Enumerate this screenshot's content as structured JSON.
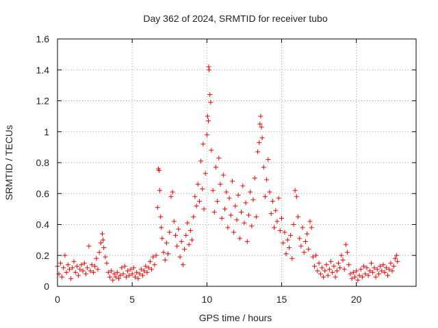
{
  "chart_data": {
    "type": "scatter",
    "title": "Day 362 of 2024, SRMTID for receiver tubo",
    "xlabel": "GPS time / hours",
    "ylabel": "SRMTID / TECUs",
    "xlim": [
      0,
      24
    ],
    "ylim": [
      0,
      1.6
    ],
    "xticks": [
      0,
      5,
      10,
      15,
      20
    ],
    "yticks": [
      0,
      0.2,
      0.4,
      0.6,
      0.8,
      1,
      1.2,
      1.4,
      1.6
    ],
    "ytick_labels": [
      "0",
      "0.2",
      "0.4",
      "0.6",
      "0.8",
      "1",
      "1.2",
      "1.4",
      "1.6"
    ],
    "grid": true,
    "marker": "+",
    "color": "#ee0000",
    "series": [
      {
        "name": "SRMTID",
        "points": [
          [
            0.0,
            0.13
          ],
          [
            0.1,
            0.08
          ],
          [
            0.2,
            0.15
          ],
          [
            0.3,
            0.06
          ],
          [
            0.4,
            0.12
          ],
          [
            0.5,
            0.2
          ],
          [
            0.6,
            0.09
          ],
          [
            0.7,
            0.14
          ],
          [
            0.8,
            0.11
          ],
          [
            0.9,
            0.05
          ],
          [
            1.0,
            0.12
          ],
          [
            1.1,
            0.16
          ],
          [
            1.2,
            0.09
          ],
          [
            1.3,
            0.13
          ],
          [
            1.4,
            0.07
          ],
          [
            1.5,
            0.11
          ],
          [
            1.6,
            0.14
          ],
          [
            1.7,
            0.1
          ],
          [
            1.8,
            0.15
          ],
          [
            1.9,
            0.08
          ],
          [
            2.0,
            0.12
          ],
          [
            2.1,
            0.26
          ],
          [
            2.2,
            0.1
          ],
          [
            2.3,
            0.14
          ],
          [
            2.4,
            0.09
          ],
          [
            2.5,
            0.13
          ],
          [
            2.6,
            0.18
          ],
          [
            2.7,
            0.11
          ],
          [
            2.8,
            0.22
          ],
          [
            2.9,
            0.28
          ],
          [
            3.0,
            0.34
          ],
          [
            3.05,
            0.3
          ],
          [
            3.1,
            0.25
          ],
          [
            3.2,
            0.19
          ],
          [
            3.3,
            0.15
          ],
          [
            3.4,
            0.09
          ],
          [
            3.5,
            0.06
          ],
          [
            3.6,
            0.1
          ],
          [
            3.7,
            0.04
          ],
          [
            3.8,
            0.08
          ],
          [
            3.9,
            0.06
          ],
          [
            4.0,
            0.09
          ],
          [
            4.1,
            0.05
          ],
          [
            4.2,
            0.07
          ],
          [
            4.3,
            0.12
          ],
          [
            4.4,
            0.08
          ],
          [
            4.5,
            0.13
          ],
          [
            4.6,
            0.06
          ],
          [
            4.7,
            0.1
          ],
          [
            4.8,
            0.07
          ],
          [
            4.9,
            0.11
          ],
          [
            5.0,
            0.08
          ],
          [
            5.1,
            0.12
          ],
          [
            5.2,
            0.06
          ],
          [
            5.3,
            0.09
          ],
          [
            5.4,
            0.05
          ],
          [
            5.5,
            0.08
          ],
          [
            5.6,
            0.11
          ],
          [
            5.7,
            0.07
          ],
          [
            5.8,
            0.1
          ],
          [
            5.9,
            0.13
          ],
          [
            6.0,
            0.09
          ],
          [
            6.1,
            0.12
          ],
          [
            6.2,
            0.16
          ],
          [
            6.3,
            0.11
          ],
          [
            6.4,
            0.19
          ],
          [
            6.5,
            0.14
          ],
          [
            6.6,
            0.2
          ],
          [
            6.7,
            0.51
          ],
          [
            6.75,
            0.76
          ],
          [
            6.8,
            0.75
          ],
          [
            6.85,
            0.62
          ],
          [
            6.9,
            0.45
          ],
          [
            6.95,
            0.38
          ],
          [
            7.0,
            0.31
          ],
          [
            7.1,
            0.22
          ],
          [
            7.2,
            0.17
          ],
          [
            7.3,
            0.28
          ],
          [
            7.4,
            0.21
          ],
          [
            7.5,
            0.35
          ],
          [
            7.6,
            0.58
          ],
          [
            7.7,
            0.61
          ],
          [
            7.8,
            0.42
          ],
          [
            7.9,
            0.33
          ],
          [
            8.0,
            0.26
          ],
          [
            8.1,
            0.37
          ],
          [
            8.2,
            0.19
          ],
          [
            8.3,
            0.29
          ],
          [
            8.4,
            0.14
          ],
          [
            8.5,
            0.24
          ],
          [
            8.6,
            0.33
          ],
          [
            8.7,
            0.41
          ],
          [
            8.8,
            0.27
          ],
          [
            8.9,
            0.36
          ],
          [
            9.0,
            0.3
          ],
          [
            9.1,
            0.45
          ],
          [
            9.2,
            0.58
          ],
          [
            9.3,
            0.52
          ],
          [
            9.4,
            0.66
          ],
          [
            9.5,
            0.55
          ],
          [
            9.6,
            0.81
          ],
          [
            9.7,
            0.63
          ],
          [
            9.75,
            0.92
          ],
          [
            9.8,
            0.5
          ],
          [
            9.9,
            0.73
          ],
          [
            10.0,
            0.98
          ],
          [
            10.05,
            1.1
          ],
          [
            10.1,
            1.07
          ],
          [
            10.12,
            1.42
          ],
          [
            10.15,
            1.4
          ],
          [
            10.2,
            1.24
          ],
          [
            10.25,
            1.19
          ],
          [
            10.3,
            0.88
          ],
          [
            10.4,
            0.62
          ],
          [
            10.5,
            0.48
          ],
          [
            10.6,
            0.77
          ],
          [
            10.7,
            0.55
          ],
          [
            10.8,
            0.83
          ],
          [
            10.9,
            0.66
          ],
          [
            11.0,
            0.44
          ],
          [
            11.1,
            0.72
          ],
          [
            11.2,
            0.5
          ],
          [
            11.3,
            0.61
          ],
          [
            11.4,
            0.38
          ],
          [
            11.5,
            0.57
          ],
          [
            11.6,
            0.46
          ],
          [
            11.7,
            0.68
          ],
          [
            11.8,
            0.35
          ],
          [
            11.9,
            0.52
          ],
          [
            12.0,
            0.43
          ],
          [
            12.1,
            0.59
          ],
          [
            12.2,
            0.31
          ],
          [
            12.3,
            0.48
          ],
          [
            12.4,
            0.65
          ],
          [
            12.5,
            0.41
          ],
          [
            12.6,
            0.54
          ],
          [
            12.7,
            0.29
          ],
          [
            12.8,
            0.46
          ],
          [
            12.9,
            0.61
          ],
          [
            13.0,
            0.39
          ],
          [
            13.1,
            0.56
          ],
          [
            13.2,
            0.7
          ],
          [
            13.3,
            0.45
          ],
          [
            13.4,
            0.87
          ],
          [
            13.5,
            0.93
          ],
          [
            13.55,
            1.05
          ],
          [
            13.6,
            1.1
          ],
          [
            13.65,
            1.03
          ],
          [
            13.7,
            0.96
          ],
          [
            13.8,
            0.77
          ],
          [
            13.9,
            0.58
          ],
          [
            14.0,
            0.69
          ],
          [
            14.1,
            0.82
          ],
          [
            14.2,
            0.61
          ],
          [
            14.3,
            0.47
          ],
          [
            14.4,
            0.55
          ],
          [
            14.5,
            0.38
          ],
          [
            14.6,
            0.49
          ],
          [
            14.7,
            0.42
          ],
          [
            14.8,
            0.57
          ],
          [
            14.9,
            0.36
          ],
          [
            15.0,
            0.44
          ],
          [
            15.1,
            0.28
          ],
          [
            15.2,
            0.35
          ],
          [
            15.3,
            0.21
          ],
          [
            15.4,
            0.3
          ],
          [
            15.5,
            0.25
          ],
          [
            15.6,
            0.33
          ],
          [
            15.7,
            0.18
          ],
          [
            15.8,
            0.4
          ],
          [
            15.9,
            0.62
          ],
          [
            16.0,
            0.58
          ],
          [
            16.1,
            0.45
          ],
          [
            16.2,
            0.31
          ],
          [
            16.3,
            0.26
          ],
          [
            16.4,
            0.38
          ],
          [
            16.5,
            0.22
          ],
          [
            16.6,
            0.29
          ],
          [
            16.7,
            0.34
          ],
          [
            16.8,
            0.24
          ],
          [
            16.9,
            0.42
          ],
          [
            17.0,
            0.38
          ],
          [
            17.1,
            0.19
          ],
          [
            17.2,
            0.13
          ],
          [
            17.3,
            0.2
          ],
          [
            17.4,
            0.1
          ],
          [
            17.5,
            0.15
          ],
          [
            17.6,
            0.08
          ],
          [
            17.7,
            0.12
          ],
          [
            17.8,
            0.06
          ],
          [
            17.9,
            0.1
          ],
          [
            18.0,
            0.14
          ],
          [
            18.1,
            0.07
          ],
          [
            18.2,
            0.11
          ],
          [
            18.3,
            0.16
          ],
          [
            18.4,
            0.09
          ],
          [
            18.5,
            0.13
          ],
          [
            18.6,
            0.06
          ],
          [
            18.7,
            0.1
          ],
          [
            18.8,
            0.15
          ],
          [
            18.9,
            0.12
          ],
          [
            19.0,
            0.2
          ],
          [
            19.1,
            0.17
          ],
          [
            19.2,
            0.11
          ],
          [
            19.3,
            0.27
          ],
          [
            19.4,
            0.22
          ],
          [
            19.5,
            0.14
          ],
          [
            19.6,
            0.08
          ],
          [
            19.7,
            0.05
          ],
          [
            19.8,
            0.09
          ],
          [
            19.9,
            0.06
          ],
          [
            20.0,
            0.1
          ],
          [
            20.1,
            0.04
          ],
          [
            20.2,
            0.07
          ],
          [
            20.3,
            0.11
          ],
          [
            20.4,
            0.06
          ],
          [
            20.5,
            0.13
          ],
          [
            20.6,
            0.08
          ],
          [
            20.7,
            0.12
          ],
          [
            20.8,
            0.07
          ],
          [
            20.9,
            0.1
          ],
          [
            21.0,
            0.15
          ],
          [
            21.1,
            0.09
          ],
          [
            21.2,
            0.12
          ],
          [
            21.3,
            0.06
          ],
          [
            21.4,
            0.11
          ],
          [
            21.5,
            0.08
          ],
          [
            21.6,
            0.13
          ],
          [
            21.7,
            0.1
          ],
          [
            21.8,
            0.14
          ],
          [
            21.9,
            0.09
          ],
          [
            22.0,
            0.12
          ],
          [
            22.1,
            0.07
          ],
          [
            22.2,
            0.11
          ],
          [
            22.3,
            0.15
          ],
          [
            22.4,
            0.1
          ],
          [
            22.5,
            0.13
          ],
          [
            22.6,
            0.18
          ],
          [
            22.7,
            0.2
          ],
          [
            22.75,
            0.16
          ]
        ]
      }
    ]
  }
}
